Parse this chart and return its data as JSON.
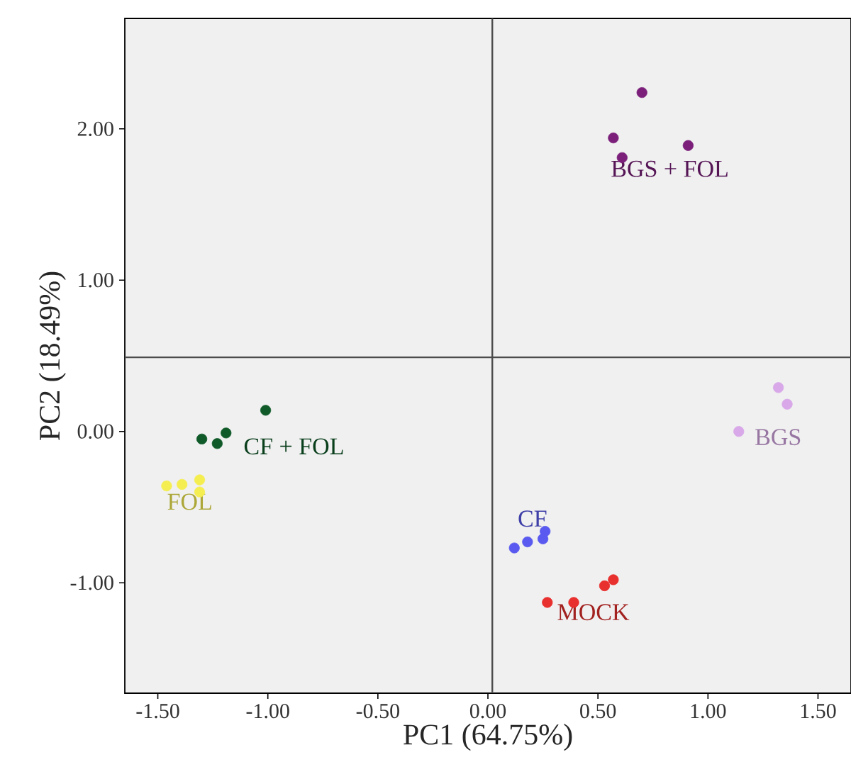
{
  "chart_data": {
    "type": "scatter",
    "xlabel": "PC1 (64.75%)",
    "ylabel": "PC2 (18.49%)",
    "xlim": [
      -1.65,
      1.65
    ],
    "ylim": [
      -1.73,
      2.73
    ],
    "xticks": [
      {
        "value": -1.5,
        "label": "-1.50"
      },
      {
        "value": -1.0,
        "label": "-1.00"
      },
      {
        "value": -0.5,
        "label": "-0.50"
      },
      {
        "value": 0,
        "label": "0.00"
      },
      {
        "value": 0.5,
        "label": "0.50"
      },
      {
        "value": 1.0,
        "label": "1.00"
      },
      {
        "value": 1.5,
        "label": "1.50"
      }
    ],
    "yticks": [
      {
        "value": -1.0,
        "label": "-1.00"
      },
      {
        "value": 0,
        "label": "0.00"
      },
      {
        "value": 1.0,
        "label": "1.00"
      },
      {
        "value": 2.0,
        "label": "2.00"
      }
    ],
    "marker": "circle",
    "ref_lines": [
      {
        "axis": "x",
        "value": 0.02
      },
      {
        "axis": "y",
        "value": 0.49
      }
    ],
    "series": [
      {
        "name": "BGS + FOL",
        "color": "#7b1f7b",
        "x": [
          0.7,
          0.57,
          0.61,
          0.91
        ],
        "values": [
          2.24,
          1.94,
          1.81,
          1.89
        ]
      },
      {
        "name": "BGS",
        "color": "#d8a8e8",
        "x": [
          1.32,
          1.36,
          1.14
        ],
        "values": [
          0.29,
          0.18,
          0.0
        ]
      },
      {
        "name": "CF + FOL",
        "color": "#0f5a28",
        "x": [
          -1.01,
          -1.3,
          -1.23,
          -1.19
        ],
        "values": [
          0.14,
          -0.05,
          -0.08,
          -0.01
        ]
      },
      {
        "name": "FOL",
        "color": "#f5ee50",
        "x": [
          -1.46,
          -1.39,
          -1.31,
          -1.31
        ],
        "values": [
          -0.36,
          -0.35,
          -0.32,
          -0.4
        ]
      },
      {
        "name": "CF",
        "color": "#5a5af0",
        "x": [
          0.12,
          0.18,
          0.25,
          0.26
        ],
        "values": [
          -0.77,
          -0.73,
          -0.71,
          -0.66
        ]
      },
      {
        "name": "MOCK",
        "color": "#e8302e",
        "x": [
          0.27,
          0.39,
          0.53,
          0.57
        ],
        "values": [
          -1.13,
          -1.13,
          -1.02,
          -0.98
        ]
      }
    ]
  }
}
